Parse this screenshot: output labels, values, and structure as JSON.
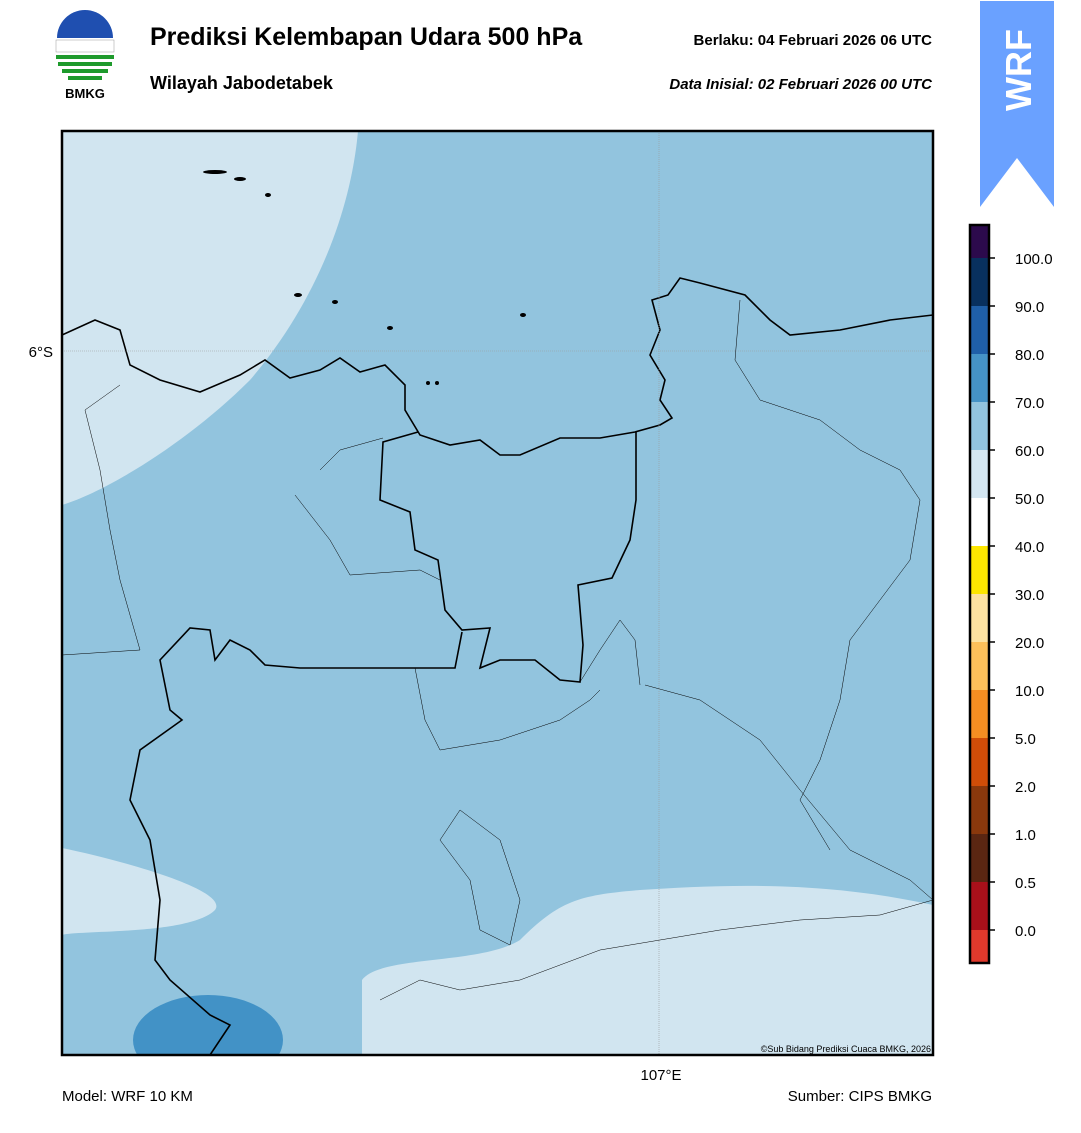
{
  "header": {
    "title": "Prediksi Kelembapan Udara 500 hPa",
    "subtitle": "Wilayah Jabodetabek",
    "valid": "Berlaku:  04 Februari 2026 06 UTC",
    "init": "Data Inisial:  02 Februari 2026 00 UTC",
    "logo_text": "BMKG",
    "badge": "WRF"
  },
  "map": {
    "lat_label": "6°S",
    "lon_label": "107°E",
    "credit": "©Sub Bidang Prediksi Cuaca BMKG, 2026",
    "background": "#92c4de"
  },
  "colorbar": {
    "ticks": [
      {
        "value": 0,
        "label": "0.0"
      },
      {
        "value": 0.5,
        "label": "0.5"
      },
      {
        "value": 1,
        "label": "1.0"
      },
      {
        "value": 2,
        "label": "2.0"
      },
      {
        "value": 5,
        "label": "5.0"
      },
      {
        "value": 10,
        "label": "10.0"
      },
      {
        "value": 20,
        "label": "20.0"
      },
      {
        "value": 30,
        "label": "30.0"
      },
      {
        "value": 40,
        "label": "40.0"
      },
      {
        "value": 50,
        "label": "50.0"
      },
      {
        "value": 60,
        "label": "60.0"
      },
      {
        "value": 70,
        "label": "70.0"
      },
      {
        "value": 80,
        "label": "80.0"
      },
      {
        "value": 90,
        "label": "90.0"
      },
      {
        "value": 100,
        "label": "100.0"
      }
    ],
    "colors": [
      "#e0392c",
      "#a8101a",
      "#5a2612",
      "#8a380c",
      "#d04d08",
      "#f58e22",
      "#fdc05a",
      "#fde2a0",
      "#fde600",
      "#ffffff",
      "#d4e6f1",
      "#92c4de",
      "#4593c6",
      "#1f5fa8",
      "#08305e",
      "#2c0a4c"
    ]
  },
  "footer": {
    "model": "Model: WRF 10 KM",
    "source": "Sumber: CIPS BMKG"
  }
}
